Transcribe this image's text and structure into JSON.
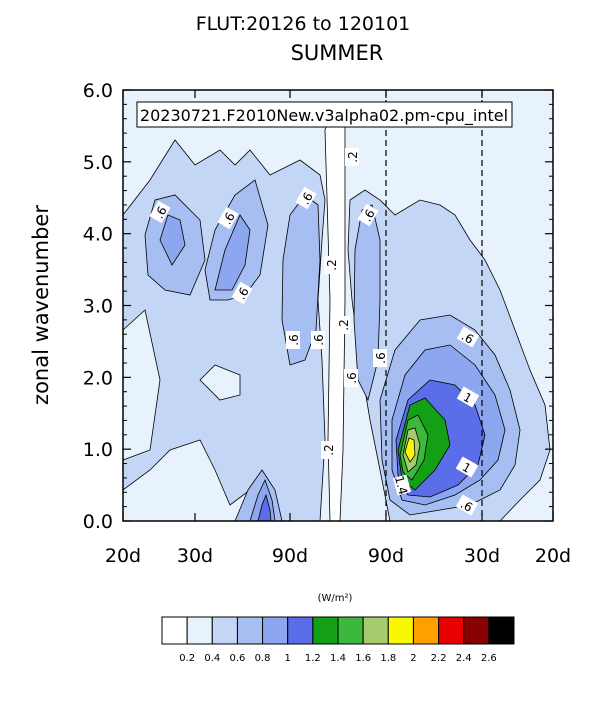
{
  "chart_data": {
    "type": "contour",
    "title": "FLUT:20126 to 120101",
    "subtitle": "SUMMER",
    "annotation": "20230721.F2010New.v3alpha02.pm-cpu_intel",
    "xlabel": "",
    "ylabel": "zonal wavenumber",
    "x_tick_labels": [
      "20d",
      "30d",
      "90d",
      "90d",
      "30d",
      "20d"
    ],
    "y_ticks": [
      "0.0",
      "1.0",
      "2.0",
      "3.0",
      "4.0",
      "5.0",
      "6.0"
    ],
    "ylim": [
      0,
      6
    ],
    "reference_lines": [
      "90d",
      "30d"
    ],
    "units": "(W/m²)",
    "colorbar_levels": [
      "0.2",
      "0.4",
      "0.6",
      "0.8",
      "1",
      "1.2",
      "1.4",
      "1.6",
      "1.8",
      "2",
      "2.2",
      "2.4",
      "2.6"
    ],
    "colorbar_colors": [
      "#ffffff",
      "#e8f2fc",
      "#c4d6f6",
      "#a6bef2",
      "#8ca6f0",
      "#5a6eea",
      "#14a014",
      "#3cb83c",
      "#a6cc6e",
      "#f8f804",
      "#ffa000",
      "#e80000",
      "#880000",
      "#000000"
    ],
    "contour_labels": [
      {
        "text": ".6"
      },
      {
        "text": ".6"
      },
      {
        "text": ".6"
      },
      {
        "text": ".6"
      },
      {
        "text": ".6"
      },
      {
        "text": ".6"
      },
      {
        "text": ".6"
      },
      {
        "text": ".6"
      },
      {
        "text": ".6"
      },
      {
        "text": ".6"
      },
      {
        "text": ".2"
      },
      {
        "text": ".2"
      },
      {
        "text": ".2"
      },
      {
        "text": ".2"
      },
      {
        "text": "1"
      },
      {
        "text": "1"
      },
      {
        "text": "1.4"
      },
      {
        "text": ".6"
      }
    ],
    "grid": false
  }
}
